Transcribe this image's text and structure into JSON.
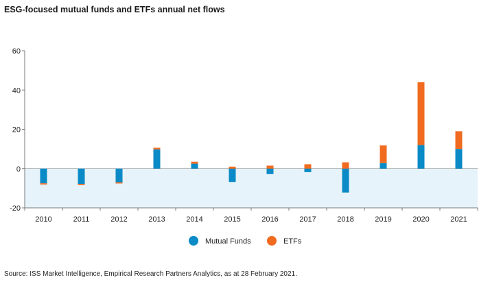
{
  "title": "ESG-focused mutual funds and ETFs annual net flows",
  "source": "Source: ISS Market Intelligence, Empirical Research Partners Analytics, as at 28 February 2021.",
  "colors": {
    "mutual_funds": "#0a8ac6",
    "etfs": "#f06b1f",
    "negative_band": "#e6f3fa",
    "axis": "#7a7a7a"
  },
  "chart_data": {
    "type": "bar",
    "stacked": true,
    "categories": [
      "2010",
      "2011",
      "2012",
      "2013",
      "2014",
      "2015",
      "2016",
      "2017",
      "2018",
      "2019",
      "2020",
      "2021"
    ],
    "series": [
      {
        "name": "Mutual Funds",
        "values": [
          -7.5,
          -7.8,
          -7.0,
          9.8,
          2.5,
          -6.8,
          -2.8,
          -1.8,
          -12.2,
          2.8,
          12.0,
          10.0
        ]
      },
      {
        "name": "ETFs",
        "values": [
          -0.6,
          -0.6,
          -0.6,
          0.8,
          1.0,
          1.0,
          1.5,
          2.2,
          3.2,
          9.0,
          32.0,
          9.0
        ]
      }
    ],
    "ylim": [
      -20,
      60
    ],
    "yticks": [
      60,
      40,
      20,
      0,
      -20
    ],
    "xlabel": "",
    "ylabel": "",
    "legend_position": "bottom",
    "grid": false
  }
}
